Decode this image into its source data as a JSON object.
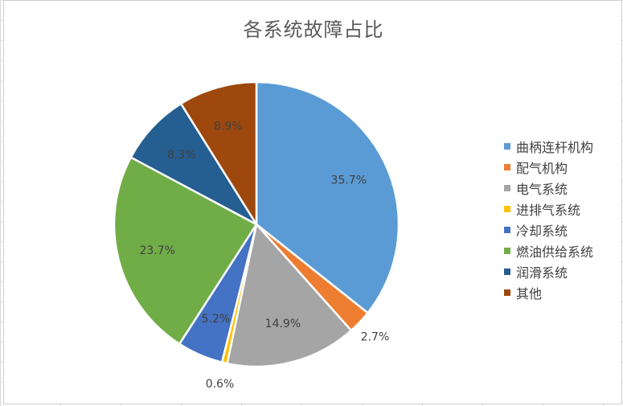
{
  "chart_data": {
    "type": "pie",
    "title": "各系统故障占比",
    "categories": [
      "曲柄连杆机构",
      "配气机构",
      "电气系统",
      "进排气系统",
      "冷却系统",
      "燃油供给系统",
      "润滑系统",
      "其他"
    ],
    "values": [
      35.7,
      2.7,
      14.9,
      0.6,
      5.2,
      23.7,
      8.3,
      8.9
    ],
    "labels": [
      "35.7%",
      "2.7%",
      "14.9%",
      "0.6%",
      "5.2%",
      "23.7%",
      "8.3%",
      "8.9%"
    ],
    "colors": [
      "#5b9bd5",
      "#ed7d31",
      "#a5a5a5",
      "#ffc000",
      "#4472c4",
      "#70ad47",
      "#255e91",
      "#9e480e"
    ],
    "legend_position": "right"
  }
}
